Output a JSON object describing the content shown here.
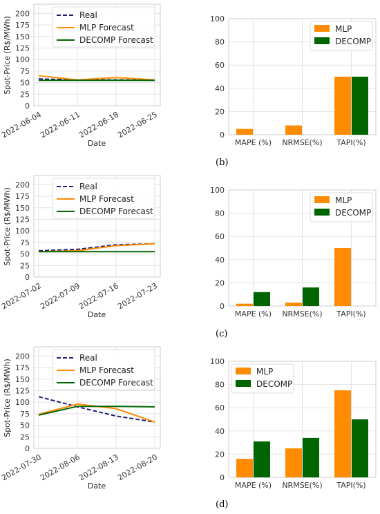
{
  "colors": {
    "real": "#1f1f7a",
    "mlp": "#ff8c00",
    "decomp": "#006400",
    "grid": "#e3e3e3",
    "frame": "#cccccc"
  },
  "panel_labels": [
    "(b)",
    "(c)",
    "(d)"
  ],
  "chart_data": [
    {
      "type": "line",
      "x": [
        "2022-06-04",
        "2022-06-11",
        "2022-06-18",
        "2022-06-25"
      ],
      "xlabel": "Date",
      "ylabel": "Spot-Price (R$/MWh)",
      "ylim": [
        0,
        220
      ],
      "yticks": [
        0,
        25,
        50,
        75,
        100,
        125,
        150,
        175,
        200
      ],
      "grid": true,
      "legend": "top",
      "series": [
        {
          "name": "Real",
          "values": [
            58,
            56,
            56,
            55
          ]
        },
        {
          "name": "MLP Forecast",
          "values": [
            65,
            56,
            61,
            56
          ]
        },
        {
          "name": "DECOMP Forecast",
          "values": [
            55,
            55,
            55,
            55
          ]
        }
      ]
    },
    {
      "type": "bar",
      "categories": [
        "MAPE (%)",
        "NRMSE(%)",
        "TAPI(%)"
      ],
      "ylim": [
        0,
        100
      ],
      "yticks": [
        0,
        20,
        40,
        60,
        80,
        100
      ],
      "grid": true,
      "legend": "top-right",
      "series": [
        {
          "name": "MLP",
          "values": [
            5,
            8,
            50
          ]
        },
        {
          "name": "DECOMP",
          "values": [
            0,
            0,
            50
          ]
        }
      ]
    },
    {
      "type": "line",
      "x": [
        "2022-07-02",
        "2022-07-09",
        "2022-07-16",
        "2022-07-23"
      ],
      "xlabel": "Date",
      "ylabel": "Spot-Price (R$/MWh)",
      "ylim": [
        0,
        220
      ],
      "yticks": [
        0,
        25,
        50,
        75,
        100,
        125,
        150,
        175,
        200
      ],
      "grid": true,
      "legend": "top",
      "series": [
        {
          "name": "Real",
          "values": [
            57,
            60,
            70,
            72
          ]
        },
        {
          "name": "MLP Forecast",
          "values": [
            55,
            57,
            68,
            72
          ]
        },
        {
          "name": "DECOMP Forecast",
          "values": [
            55,
            55,
            55,
            55
          ]
        }
      ]
    },
    {
      "type": "bar",
      "categories": [
        "MAPE (%)",
        "NRMSE(%)",
        "TAPI(%)"
      ],
      "ylim": [
        0,
        100
      ],
      "yticks": [
        0,
        20,
        40,
        60,
        80,
        100
      ],
      "grid": true,
      "legend": "top-right",
      "series": [
        {
          "name": "MLP",
          "values": [
            2,
            3,
            50
          ]
        },
        {
          "name": "DECOMP",
          "values": [
            12,
            16,
            0
          ]
        }
      ]
    },
    {
      "type": "line",
      "x": [
        "2022-07-30",
        "2022-08-06",
        "2022-08-13",
        "2022-08-20"
      ],
      "xlabel": "Date",
      "ylabel": "Spot-Price (R$/MWh)",
      "ylim": [
        0,
        220
      ],
      "yticks": [
        0,
        25,
        50,
        75,
        100,
        125,
        150,
        175,
        200
      ],
      "grid": true,
      "legend": "top",
      "series": [
        {
          "name": "Real",
          "values": [
            112,
            90,
            70,
            57
          ]
        },
        {
          "name": "MLP Forecast",
          "values": [
            74,
            96,
            86,
            57
          ]
        },
        {
          "name": "DECOMP Forecast",
          "values": [
            72,
            91,
            91,
            90
          ]
        }
      ]
    },
    {
      "type": "bar",
      "categories": [
        "MAPE (%)",
        "NRMSE(%)",
        "TAPI(%)"
      ],
      "ylim": [
        0,
        100
      ],
      "yticks": [
        0,
        20,
        40,
        60,
        80,
        100
      ],
      "grid": true,
      "legend": "top-left",
      "series": [
        {
          "name": "MLP",
          "values": [
            16,
            25,
            75
          ]
        },
        {
          "name": "DECOMP",
          "values": [
            31,
            34,
            50
          ]
        }
      ]
    }
  ]
}
